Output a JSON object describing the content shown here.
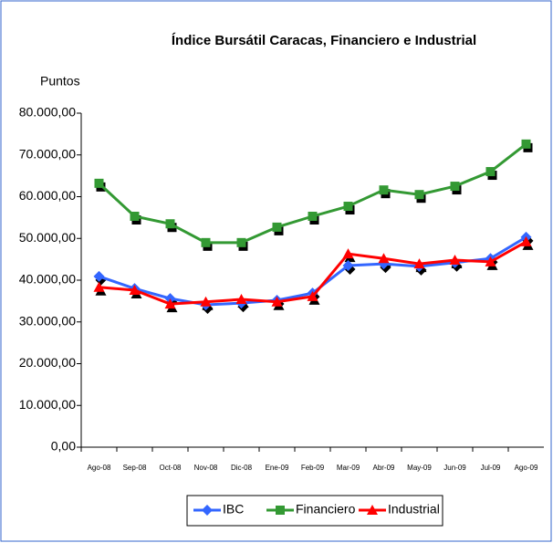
{
  "chart_data": {
    "type": "line",
    "title": "Índice Bursátil Caracas, Financiero e Industrial",
    "y_label": "Puntos",
    "categories": [
      "Ago-08",
      "Sep-08",
      "Oct-08",
      "Nov-08",
      "Dic-08",
      "Ene-09",
      "Feb-09",
      "Mar-09",
      "Abr-09",
      "May-09",
      "Jun-09",
      "Jul-09",
      "Ago-09"
    ],
    "series": [
      {
        "name": "IBC",
        "color": "#3366ff",
        "marker": "diamond",
        "values": [
          40900,
          38000,
          35600,
          34100,
          34500,
          35200,
          36900,
          43500,
          43900,
          43300,
          44200,
          45200,
          50300
        ]
      },
      {
        "name": "Financiero",
        "color": "#339933",
        "marker": "square",
        "values": [
          63200,
          55300,
          53500,
          49000,
          49000,
          52700,
          55300,
          57700,
          61600,
          60500,
          62500,
          66000,
          72600
        ]
      },
      {
        "name": "Industrial",
        "color": "#ff0000",
        "marker": "triangle",
        "values": [
          38300,
          37600,
          34300,
          34800,
          35400,
          34800,
          36100,
          46300,
          45200,
          43900,
          44800,
          44400,
          49200
        ]
      }
    ],
    "ylim": [
      0,
      80000
    ],
    "yticks": [
      {
        "value": 0,
        "label": "0,00"
      },
      {
        "value": 10000,
        "label": "10.000,00"
      },
      {
        "value": 20000,
        "label": "20.000,00"
      },
      {
        "value": 30000,
        "label": "30.000,00"
      },
      {
        "value": 40000,
        "label": "40.000,00"
      },
      {
        "value": 50000,
        "label": "50.000,00"
      },
      {
        "value": 60000,
        "label": "60.000,00"
      },
      {
        "value": 70000,
        "label": "70.000,00"
      },
      {
        "value": 80000,
        "label": "80.000,00"
      }
    ],
    "legend": "bottom"
  }
}
